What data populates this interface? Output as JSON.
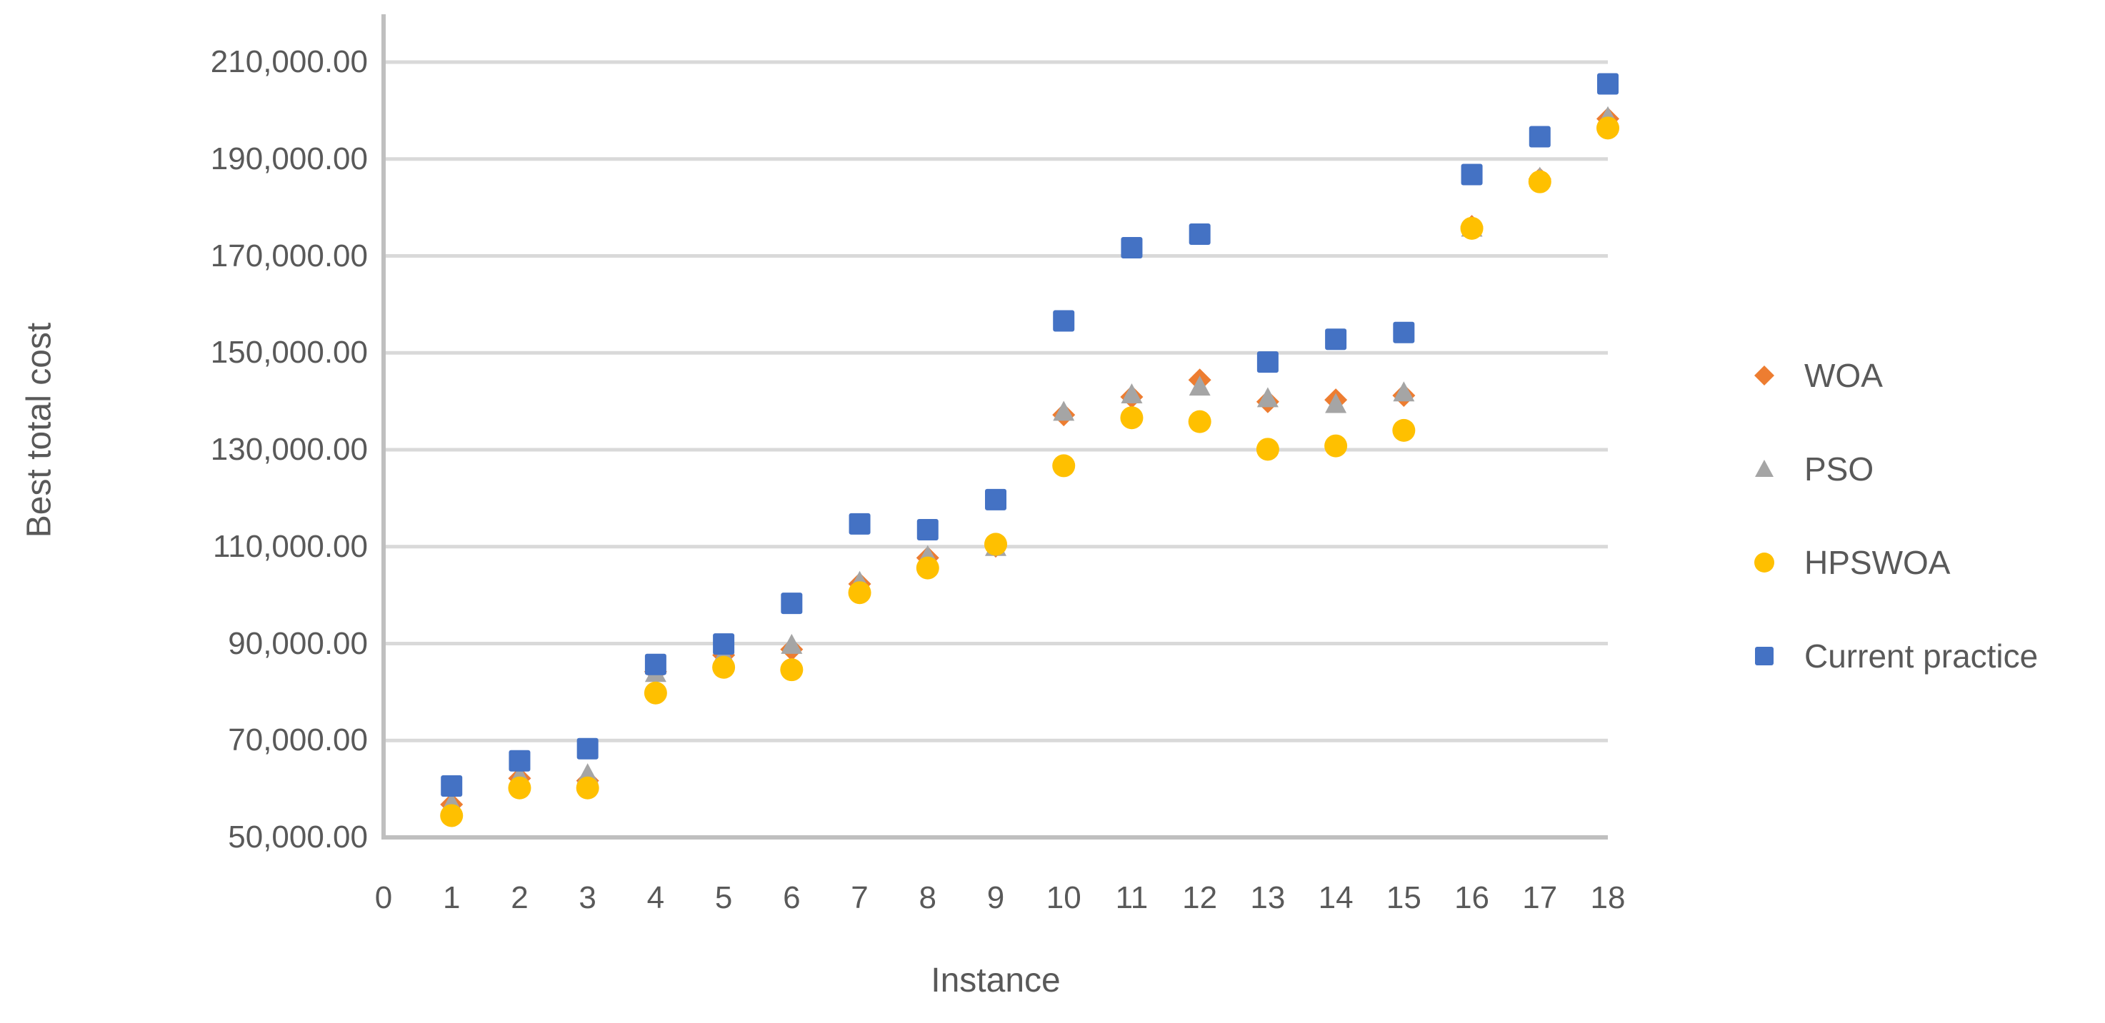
{
  "chart_data": {
    "type": "scatter",
    "title": "",
    "xlabel": "Instance",
    "ylabel": "Best total cost",
    "grid": true,
    "legend_position": "right",
    "xlim": [
      0,
      18
    ],
    "ylim": [
      50000,
      218400
    ],
    "x_ticks": [
      "0",
      "1",
      "2",
      "3",
      "4",
      "5",
      "6",
      "7",
      "8",
      "9",
      "10",
      "11",
      "12",
      "13",
      "14",
      "15",
      "16",
      "17",
      "18"
    ],
    "y_ticks": [
      {
        "value": 50000,
        "label": "50,000.00"
      },
      {
        "value": 70000,
        "label": "70,000.00"
      },
      {
        "value": 90000,
        "label": "90,000.00"
      },
      {
        "value": 110000,
        "label": "110,000.00"
      },
      {
        "value": 130000,
        "label": "130,000.00"
      },
      {
        "value": 150000,
        "label": "150,000.00"
      },
      {
        "value": 170000,
        "label": "170,000.00"
      },
      {
        "value": 190000,
        "label": "190,000.00"
      },
      {
        "value": 210000,
        "label": "210,000.00"
      }
    ],
    "x": [
      1,
      2,
      3,
      4,
      5,
      6,
      7,
      8,
      9,
      10,
      11,
      12,
      13,
      14,
      15,
      16,
      17,
      18
    ],
    "series": [
      {
        "name": "WOA",
        "marker": "diamond",
        "color": "#ED7D31",
        "values": [
          56800,
          62200,
          61700,
          84200,
          87600,
          88800,
          102300,
          107700,
          110100,
          137200,
          140900,
          144400,
          139900,
          140300,
          141200,
          176100,
          185900,
          198300
        ]
      },
      {
        "name": "PSO",
        "marker": "triangle",
        "color": "#A5A5A5",
        "values": [
          57100,
          62700,
          63100,
          84000,
          87800,
          89800,
          102800,
          108100,
          110000,
          137900,
          141500,
          143100,
          140700,
          139500,
          141900,
          175900,
          186200,
          198700
        ]
      },
      {
        "name": "HPSWOA",
        "marker": "circle",
        "color": "#FFC000",
        "values": [
          54500,
          60200,
          60200,
          79800,
          85100,
          84600,
          100500,
          105600,
          110500,
          126700,
          136600,
          135800,
          130100,
          130800,
          134000,
          175700,
          185300,
          196400
        ]
      },
      {
        "name": "Current practice",
        "marker": "square",
        "color": "#4472C4",
        "values": [
          60600,
          65800,
          68300,
          85700,
          89900,
          98300,
          114700,
          113500,
          119700,
          156600,
          171700,
          174500,
          148100,
          152800,
          154200,
          186800,
          194600,
          205500
        ]
      }
    ],
    "styles": {
      "gridline_color": "#D9D9D9",
      "axis_line_color": "#BFBFBF",
      "text_color": "#595959"
    }
  }
}
